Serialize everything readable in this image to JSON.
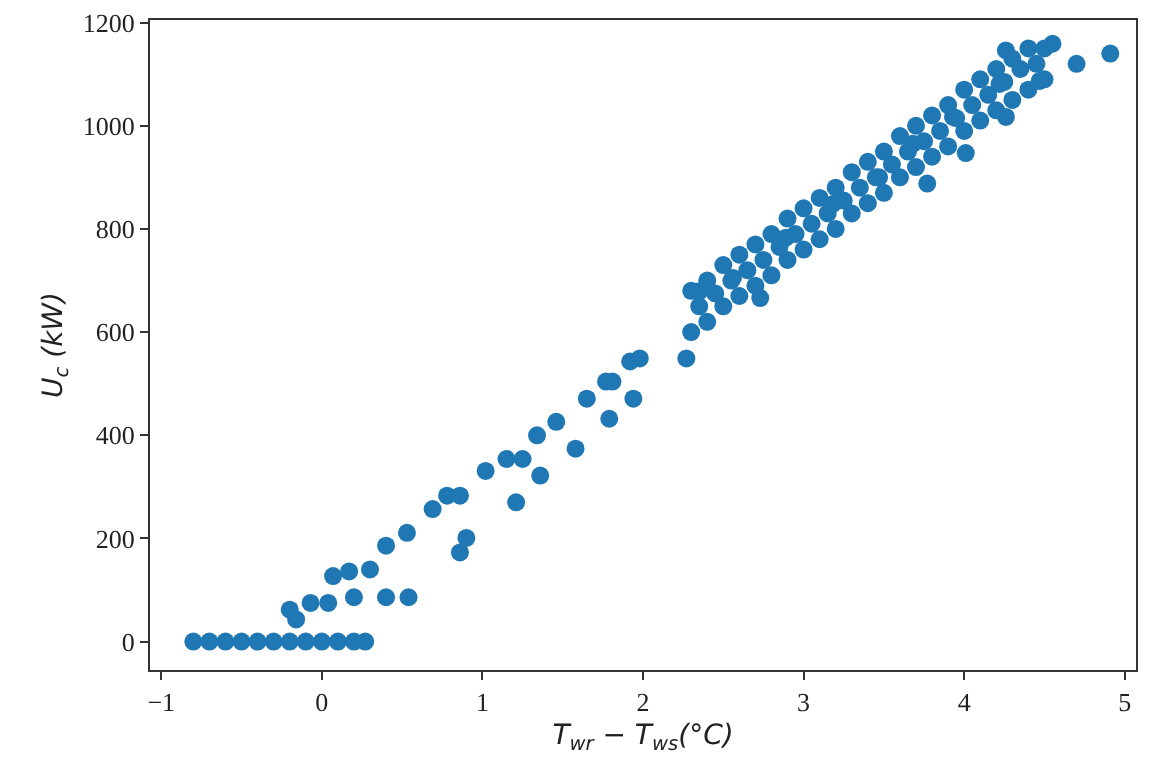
{
  "chart_data": {
    "type": "scatter",
    "xlabel": "T$_{wr}$ − T$_{ws}$(°C)",
    "ylabel": "U$_{c}$ (kW)",
    "xlim": [
      -1.07,
      5.07
    ],
    "ylim": [
      -55,
      1205
    ],
    "xticks": [
      {
        "value": -1,
        "label": "−1"
      },
      0,
      1,
      2,
      3,
      4,
      5
    ],
    "yticks": [
      0,
      200,
      400,
      600,
      800,
      1000,
      1200
    ],
    "grid": false,
    "marker": "circle",
    "series": [
      {
        "color": "#1f77b4",
        "x": [
          -0.8,
          -0.7,
          -0.6,
          -0.5,
          -0.4,
          -0.3,
          -0.2,
          -0.1,
          0,
          0.1,
          0.2,
          0.27,
          -0.2,
          -0.16,
          -0.07,
          0.04,
          0.07,
          0.17,
          0.2,
          0.3,
          0.4,
          0.4,
          0.53,
          0.54,
          0.69,
          0.78,
          0.86,
          0.86,
          0.9,
          1.02,
          1.15,
          1.21,
          1.25,
          1.36,
          1.34,
          1.46,
          1.58,
          1.65,
          1.77,
          1.79,
          1.92,
          1.94,
          1.81,
          1.98,
          2.27,
          2.35,
          2.56,
          2.73,
          2.89,
          3.18,
          3.47,
          3.68,
          3.77,
          4.01,
          3.93,
          4.22,
          4.26,
          4.55,
          4.26,
          4.47,
          4.7,
          4.91,
          2.3,
          2.4,
          2.5,
          2.6,
          2.7,
          2.8,
          2.9,
          3.0,
          3.1,
          3.2,
          3.3,
          3.4,
          3.5,
          3.6,
          3.7,
          3.8,
          3.9,
          4.0,
          4.1,
          4.2,
          4.3,
          4.4,
          4.5,
          2.3,
          2.4,
          2.5,
          2.6,
          2.7,
          2.8,
          2.9,
          3.0,
          3.1,
          3.2,
          3.3,
          3.4,
          3.5,
          3.6,
          3.7,
          3.8,
          3.9,
          4.0,
          4.1,
          4.2,
          4.3,
          4.4,
          4.5,
          2.35,
          2.45,
          2.55,
          2.65,
          2.75,
          2.85,
          2.95,
          3.05,
          3.15,
          3.25,
          3.35,
          3.45,
          3.55,
          3.65,
          3.75,
          3.85,
          3.95,
          4.05,
          4.15,
          4.25,
          4.35,
          4.45
        ],
        "values": [
          0,
          0,
          0,
          0,
          0,
          0,
          0,
          0,
          0,
          0,
          0,
          0,
          62,
          43,
          75,
          75,
          127,
          136,
          86,
          140,
          186,
          86,
          211,
          86,
          257,
          283,
          283,
          173,
          201,
          331,
          354,
          270,
          354,
          322,
          400,
          426,
          374,
          471,
          504,
          432,
          543,
          471,
          504,
          549,
          549,
          679,
          705,
          666,
          783,
          848,
          900,
          965,
          888,
          947,
          1017,
          1081,
          1146,
          1159,
          1017,
          1087,
          1120,
          1140,
          680,
          700,
          730,
          750,
          770,
          790,
          820,
          840,
          860,
          880,
          910,
          930,
          950,
          980,
          1000,
          1020,
          1040,
          1070,
          1090,
          1110,
          1130,
          1150,
          1150,
          600,
          620,
          650,
          670,
          690,
          710,
          740,
          760,
          780,
          800,
          830,
          850,
          870,
          900,
          920,
          940,
          960,
          990,
          1010,
          1030,
          1050,
          1070,
          1090,
          650,
          675,
          700,
          720,
          740,
          765,
          790,
          810,
          830,
          855,
          880,
          900,
          925,
          950,
          970,
          990,
          1015,
          1040,
          1060,
          1085,
          1110,
          1120
        ]
      }
    ]
  }
}
